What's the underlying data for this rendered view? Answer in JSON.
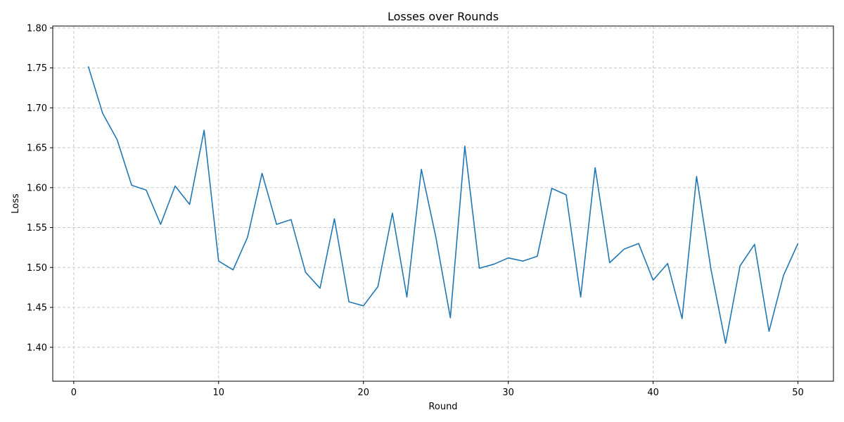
{
  "chart_data": {
    "type": "line",
    "title": "Losses over Rounds",
    "xlabel": "Round",
    "ylabel": "Loss",
    "xlim": [
      -1.45,
      52.45
    ],
    "ylim": [
      1.3575,
      1.8025
    ],
    "xticks": [
      0,
      10,
      20,
      30,
      40,
      50
    ],
    "yticks": [
      1.4,
      1.45,
      1.5,
      1.55,
      1.6,
      1.65,
      1.7,
      1.75,
      1.8
    ],
    "grid": true,
    "line_color": "#1f77b4",
    "series": [
      {
        "x": [
          1,
          2,
          3,
          4,
          5,
          6,
          7,
          8,
          9,
          10,
          11,
          12,
          13,
          14,
          15,
          16,
          17,
          18,
          19,
          20,
          21,
          22,
          23,
          24,
          25,
          26,
          27,
          28,
          29,
          30,
          31,
          32,
          33,
          34,
          35,
          36,
          37,
          38,
          39,
          40,
          41,
          42,
          43,
          44,
          45,
          46,
          47,
          48,
          49,
          50
        ],
        "values": [
          1.752,
          1.693,
          1.66,
          1.603,
          1.597,
          1.554,
          1.602,
          1.579,
          1.672,
          1.508,
          1.497,
          1.538,
          1.618,
          1.554,
          1.56,
          1.494,
          1.474,
          1.561,
          1.457,
          1.452,
          1.476,
          1.568,
          1.463,
          1.623,
          1.538,
          1.437,
          1.652,
          1.499,
          1.504,
          1.512,
          1.508,
          1.514,
          1.599,
          1.591,
          1.463,
          1.625,
          1.506,
          1.523,
          1.53,
          1.484,
          1.505,
          1.436,
          1.614,
          1.497,
          1.405,
          1.502,
          1.529,
          1.42,
          1.49,
          1.53
        ]
      }
    ]
  }
}
